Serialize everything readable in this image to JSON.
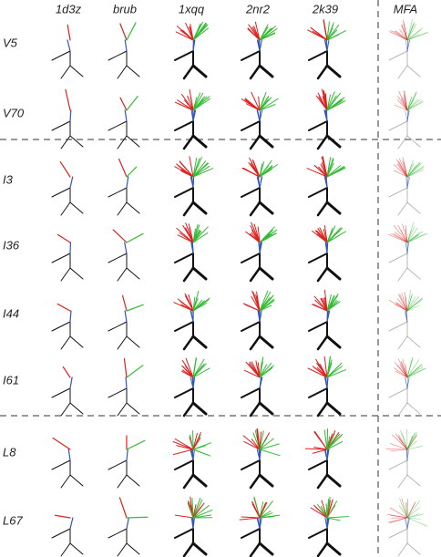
{
  "column_headers": [
    "1d3z",
    "brub",
    "1xqq",
    "2nr2",
    "2k39",
    "MFA"
  ],
  "row_labels": [
    "V5",
    "V70",
    "I3",
    "I36",
    "I44",
    "I61",
    "L8",
    "L67"
  ]
}
